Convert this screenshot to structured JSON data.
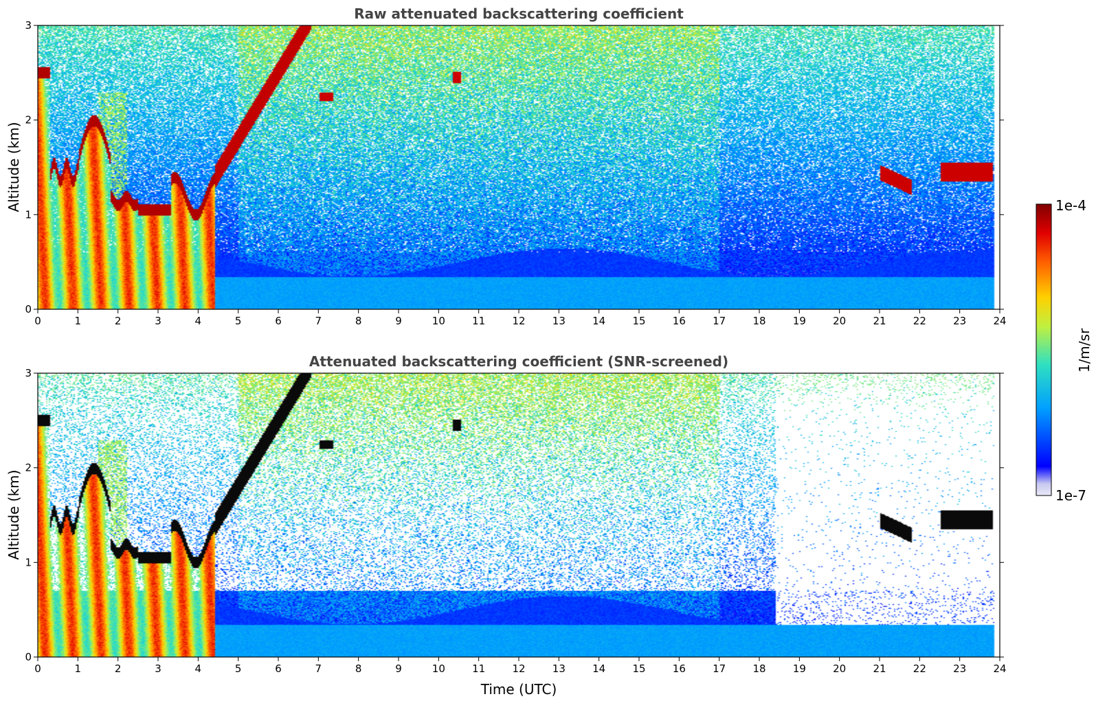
{
  "chart_data": [
    {
      "type": "heatmap",
      "title": "Raw attenuated backscattering coefficient",
      "xlabel": "",
      "ylabel": "Altitude (km)",
      "xlim": [
        0,
        24
      ],
      "ylim": [
        0,
        3
      ],
      "xticks": [
        "0",
        "1",
        "2",
        "3",
        "4",
        "5",
        "6",
        "7",
        "8",
        "9",
        "10",
        "11",
        "12",
        "13",
        "14",
        "15",
        "16",
        "17",
        "18",
        "19",
        "20",
        "21",
        "22",
        "23",
        "24"
      ],
      "yticks": [
        "0",
        "1",
        "2",
        "3"
      ],
      "colorscale": "jet",
      "value_range": [
        "1e-7",
        "1e-4"
      ],
      "features": [
        {
          "t_start": 0.0,
          "t_end": 4.4,
          "base_km": 0.0,
          "top_km": 1.4,
          "level": "high"
        },
        {
          "t_start": 0.0,
          "t_end": 1.7,
          "base_km": 1.3,
          "top_km": 1.5,
          "level": "max"
        },
        {
          "t_start": 4.4,
          "t_end": 6.8,
          "base_km": 1.4,
          "top_km": 3.0,
          "level": "max"
        },
        {
          "t_start": 7.0,
          "t_end": 7.3,
          "base_km": 2.2,
          "top_km": 2.3,
          "level": "max"
        },
        {
          "t_start": 10.4,
          "t_end": 10.5,
          "base_km": 2.4,
          "top_km": 2.5,
          "level": "max"
        },
        {
          "t_start": 21.0,
          "t_end": 21.8,
          "base_km": 1.2,
          "top_km": 1.5,
          "level": "max"
        },
        {
          "t_start": 22.5,
          "t_end": 23.8,
          "base_km": 1.2,
          "top_km": 1.6,
          "level": "max"
        }
      ]
    },
    {
      "type": "heatmap",
      "title": "Attenuated backscattering coefficient (SNR-screened)",
      "xlabel": "Time (UTC)",
      "ylabel": "Altitude (km)",
      "xlim": [
        0,
        24
      ],
      "ylim": [
        0,
        3
      ],
      "xticks": [
        "0",
        "1",
        "2",
        "3",
        "4",
        "5",
        "6",
        "7",
        "8",
        "9",
        "10",
        "11",
        "12",
        "13",
        "14",
        "15",
        "16",
        "17",
        "18",
        "19",
        "20",
        "21",
        "22",
        "23",
        "24"
      ],
      "yticks": [
        "0",
        "1",
        "2",
        "3"
      ],
      "colorscale": "jet",
      "value_range": [
        "1e-7",
        "1e-4"
      ]
    }
  ],
  "colorbar": {
    "max_label": "1e-4",
    "min_label": "1e-7",
    "unit_label": "1/m/sr"
  },
  "colors": {
    "jet_stops": [
      "#e8e8f8",
      "#0000ff",
      "#00a0ff",
      "#30e0c0",
      "#c0f040",
      "#ffd000",
      "#ff6000",
      "#e00000",
      "#800000"
    ]
  }
}
